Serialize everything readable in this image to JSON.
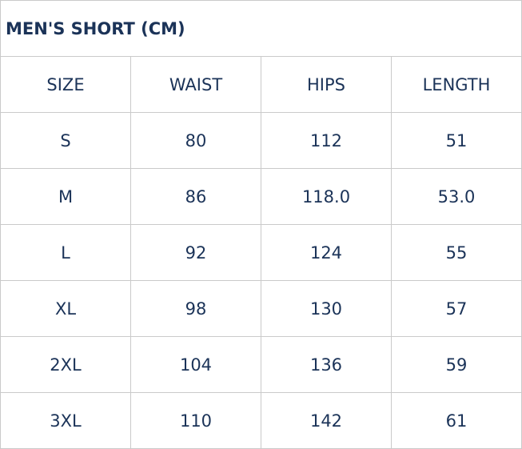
{
  "title": "MEN'S SHORT (CM)",
  "headers": [
    "SIZE",
    "WAIST",
    "HIPS",
    "LENGTH"
  ],
  "rows": [
    [
      "S",
      "80",
      "112",
      "51"
    ],
    [
      "M",
      "86",
      "118.0",
      "53.0"
    ],
    [
      "L",
      "92",
      "124",
      "55"
    ],
    [
      "XL",
      "98",
      "130",
      "57"
    ],
    [
      "2XL",
      "104",
      "136",
      "59"
    ],
    [
      "3XL",
      "110",
      "142",
      "61"
    ]
  ],
  "colors": {
    "text": "#1b3358",
    "border": "#cacaca"
  }
}
